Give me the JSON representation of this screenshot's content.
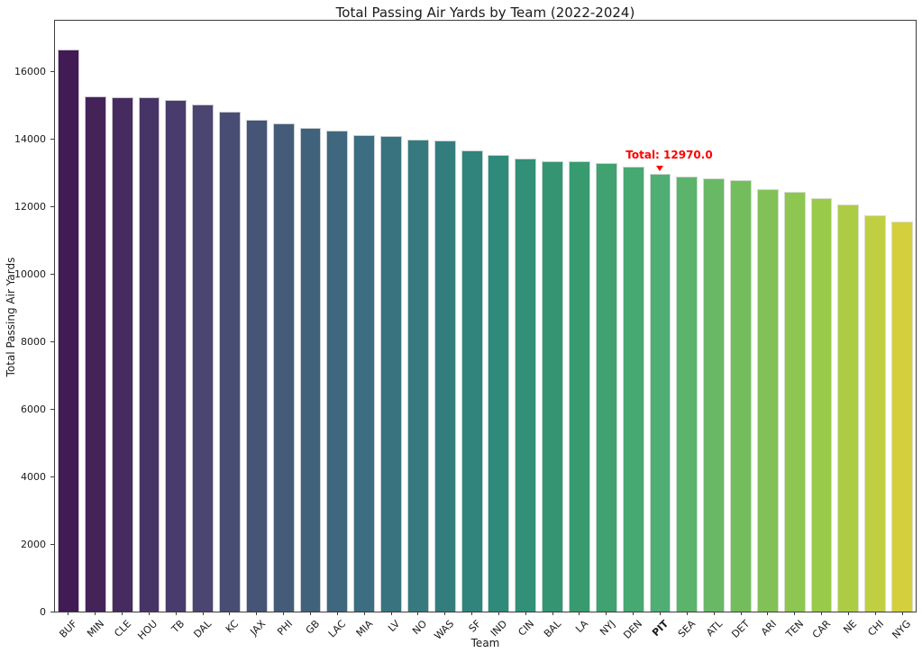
{
  "chart_data": {
    "type": "bar",
    "title": "Total Passing Air Yards by Team (2022-2024)",
    "xlabel": "Team",
    "ylabel": "Total Passing Air Yards",
    "categories": [
      "BUF",
      "MIN",
      "CLE",
      "HOU",
      "TB",
      "DAL",
      "KC",
      "JAX",
      "PHI",
      "GB",
      "LAC",
      "MIA",
      "LV",
      "NO",
      "WAS",
      "SF",
      "IND",
      "CIN",
      "BAL",
      "LA",
      "NYJ",
      "DEN",
      "PIT",
      "SEA",
      "ATL",
      "DET",
      "ARI",
      "TEN",
      "CAR",
      "NE",
      "CHI",
      "NYG"
    ],
    "values": [
      16660,
      15270,
      15230,
      15220,
      15140,
      15030,
      14810,
      14560,
      14450,
      14320,
      14250,
      14110,
      14090,
      13990,
      13940,
      13670,
      13530,
      13410,
      13350,
      13330,
      13290,
      13180,
      12970,
      12890,
      12840,
      12790,
      12500,
      12430,
      12250,
      12060,
      11750,
      11540
    ],
    "bar_colors": [
      "#421a54",
      "#442359",
      "#462b60",
      "#473466",
      "#493c6c",
      "#4b4572",
      "#484d74",
      "#465476",
      "#445c78",
      "#41627b",
      "#3f677d",
      "#3c6d80",
      "#39737f",
      "#36797e",
      "#337e7d",
      "#31847c",
      "#2e8a7a",
      "#319077",
      "#359573",
      "#389b70",
      "#40a171",
      "#47a872",
      "#4fae74",
      "#5bb36c",
      "#68b865",
      "#74bd5d",
      "#81c157",
      "#8dc650",
      "#9aca4a",
      "#adcc46",
      "#c0ce41",
      "#d3cf3d"
    ],
    "yticks": [
      0,
      2000,
      4000,
      6000,
      8000,
      10000,
      12000,
      14000,
      16000
    ],
    "ylim": [
      0,
      17500
    ],
    "grid": false,
    "legend": false,
    "bar_width_fraction": 0.8,
    "highlight_team": "PIT",
    "annotation": {
      "text": "Total: 12970.0",
      "target_team": "PIT",
      "value": 12970.0,
      "color": "#ff0000"
    }
  }
}
